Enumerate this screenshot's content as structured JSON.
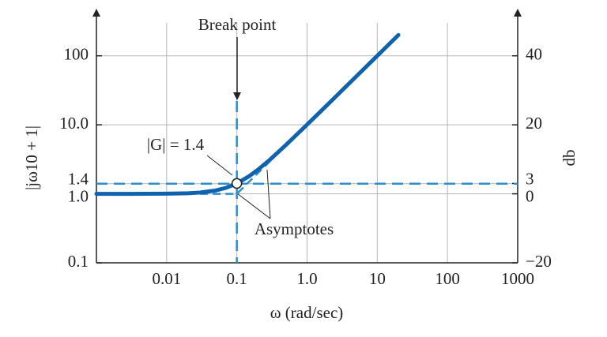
{
  "chart_data": {
    "type": "line",
    "xlabel": "ω (rad/sec)",
    "ylabel": "|jω10 + 1|",
    "y2label": "db",
    "xscale": "log",
    "yscale": "log",
    "grid": true,
    "xlim": [
      0.001,
      1000
    ],
    "xticks": [
      0.01,
      0.1,
      {
        "value": 1,
        "label": "1.0"
      },
      10,
      100,
      1000
    ],
    "ylim": [
      0.1,
      300
    ],
    "yticks": [
      0.1,
      {
        "value": 1,
        "label": "1.0"
      },
      1.4,
      {
        "value": 10,
        "label": "10.0"
      },
      100
    ],
    "y2lim": [
      -20,
      49.54
    ],
    "y2ticks": [
      {
        "value": -20,
        "label": "−20"
      },
      0,
      3,
      20,
      40
    ],
    "series": [
      {
        "color": "#0f62ad",
        "x": [
          0.001,
          0.003,
          0.01,
          0.02,
          0.03,
          0.05,
          0.07,
          0.1,
          0.15,
          0.2,
          0.3,
          0.5,
          1,
          2,
          5,
          10,
          20
        ],
        "values": [
          1.0,
          1.0,
          1.005,
          1.02,
          1.044,
          1.118,
          1.221,
          1.414,
          1.803,
          2.236,
          3.162,
          5.099,
          10.05,
          20.02,
          50.01,
          100.0,
          200.0
        ]
      },
      {
        "name": "Asymptotes",
        "color": "#2a8ed0",
        "x": [
          0.03,
          0.1,
          0.3
        ],
        "values": [
          1,
          1,
          3
        ]
      }
    ],
    "annotations": [
      {
        "text": "Break point"
      },
      {
        "text": "|G| = 1.4"
      }
    ]
  }
}
